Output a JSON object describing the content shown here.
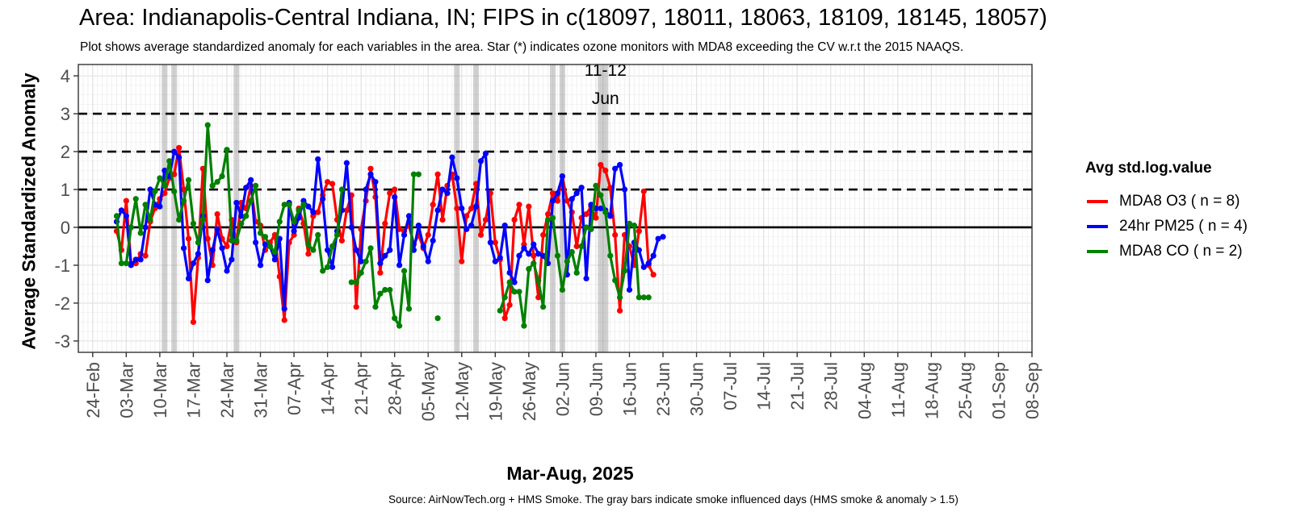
{
  "title": "Area: Indianapolis-Central Indiana, IN; FIPS in c(18097, 18011, 18063, 18109, 18145, 18057)",
  "subtitle": "Plot shows average standardized anomaly for each variables in the area. Star (*) indicates ozone monitors with MDA8 exceeding the CV w.r.t the 2015 NAAQS.",
  "caption": "Source: AirNowTech.org + HMS Smoke. The gray bars indicate smoke influenced days (HMS smoke & anomaly > 1.5)",
  "chart_data": {
    "type": "line",
    "xlabel": "Mar-Aug, 2025",
    "ylabel": "Average Standardized Anomaly",
    "x_axis": "date",
    "xlim": [
      "2025-02-21",
      "2025-09-08"
    ],
    "ylim": [
      -3.3,
      4.3
    ],
    "x_tick_dates": [
      "2025-02-24",
      "2025-03-03",
      "2025-03-10",
      "2025-03-17",
      "2025-03-24",
      "2025-03-31",
      "2025-04-07",
      "2025-04-14",
      "2025-04-21",
      "2025-04-28",
      "2025-05-05",
      "2025-05-12",
      "2025-05-19",
      "2025-05-26",
      "2025-06-02",
      "2025-06-09",
      "2025-06-16",
      "2025-06-23",
      "2025-06-30",
      "2025-07-07",
      "2025-07-14",
      "2025-07-21",
      "2025-07-28",
      "2025-08-04",
      "2025-08-11",
      "2025-08-18",
      "2025-08-25",
      "2025-09-01",
      "2025-09-08"
    ],
    "x_tick_labels": [
      "24-Feb",
      "03-Mar",
      "10-Mar",
      "17-Mar",
      "24-Mar",
      "31-Mar",
      "07-Apr",
      "14-Apr",
      "21-Apr",
      "28-Apr",
      "05-May",
      "12-May",
      "19-May",
      "26-May",
      "02-Jun",
      "09-Jun",
      "16-Jun",
      "23-Jun",
      "30-Jun",
      "07-Jul",
      "14-Jul",
      "21-Jul",
      "28-Jul",
      "04-Aug",
      "11-Aug",
      "18-Aug",
      "25-Aug",
      "01-Sep",
      "08-Sep"
    ],
    "y_ticks": [
      4,
      3,
      2,
      1,
      0,
      -1,
      -2,
      -3
    ],
    "dashed_reference_lines": [
      1,
      2,
      3
    ],
    "solid_reference_line": 0,
    "smoke_day_bars": [
      "2025-03-11",
      "2025-03-13",
      "2025-03-26",
      "2025-05-11",
      "2025-05-15",
      "2025-05-31",
      "2025-06-02",
      "2025-06-10",
      "2025-06-11"
    ],
    "annotation": {
      "text_lines": [
        "11-12",
        "Jun"
      ],
      "x": "2025-06-11",
      "y": 4.0
    },
    "legend": {
      "title": "Avg std.log.value",
      "position": "right"
    },
    "start_date": "2025-03-01",
    "series": [
      {
        "name": "MDA8 O3 ( n = 8)",
        "color": "#ff0000",
        "values": [
          -0.1,
          -0.6,
          0.7,
          -0.95,
          -0.95,
          -0.7,
          -0.75,
          0.15,
          0.5,
          0.75,
          0.9,
          1.3,
          1.4,
          2.1,
          1.0,
          -0.3,
          -2.5,
          -0.8,
          1.55,
          -0.3,
          -1.0,
          0.35,
          -0.3,
          -0.5,
          0.2,
          -0.4,
          0.65,
          0.5,
          1.1,
          0.15,
          0.05,
          -0.6,
          -0.4,
          -0.2,
          -1.3,
          -2.45,
          -0.4,
          -0.2,
          0.5,
          0.1,
          -0.7,
          0.3,
          0.4,
          0.85,
          1.2,
          1.15,
          0.2,
          -0.35,
          0.45,
          0.85,
          -2.1,
          -0.05,
          0.7,
          1.55,
          0.8,
          -1.2,
          0.1,
          0.9,
          1.0,
          -0.05,
          -0.1,
          0.05,
          -0.45,
          -0.2,
          -0.55,
          -0.2,
          0.6,
          1.4,
          0.2,
          1.1,
          1.4,
          0.5,
          -0.9,
          0.3,
          0.5,
          1.15,
          -0.2,
          0.2,
          0.9,
          -0.4,
          -0.85,
          -2.4,
          -2.05,
          0.2,
          0.6,
          -0.45,
          0.55,
          -0.75,
          -1.85,
          -0.2,
          0.35,
          0.9,
          0.7,
          1.35,
          0.7,
          0.4,
          -0.5,
          0.25,
          0.35,
          0.55,
          0.25,
          1.65,
          1.5,
          1.05,
          -0.2,
          -2.2,
          -0.2,
          -0.5,
          -1.0,
          -0.1,
          0.95,
          -1.0,
          -1.25
        ]
      },
      {
        "name": "24hr PM25 ( n = 4)",
        "color": "#0000ff",
        "values": [
          0.15,
          0.45,
          0.3,
          -1.0,
          -0.85,
          -0.85,
          0.0,
          1.0,
          0.6,
          0.55,
          1.5,
          1.35,
          2.0,
          1.85,
          -0.55,
          -1.35,
          -0.95,
          -0.7,
          0.3,
          -1.4,
          -0.6,
          -0.05,
          -0.55,
          -1.15,
          -0.85,
          0.65,
          0.3,
          1.05,
          1.25,
          -0.4,
          -1.0,
          -0.45,
          -0.5,
          -0.85,
          -0.3,
          -2.15,
          0.65,
          -0.1,
          0.25,
          0.7,
          0.55,
          0.4,
          1.8,
          0.75,
          -0.6,
          -1.05,
          -0.1,
          0.45,
          1.7,
          0.0,
          -0.6,
          -0.9,
          1.0,
          1.4,
          1.2,
          -0.95,
          -0.75,
          -0.6,
          0.8,
          -1.0,
          -0.2,
          0.3,
          -0.6,
          0.05,
          -0.5,
          -0.9,
          -0.35,
          0.45,
          1.0,
          0.9,
          1.85,
          1.3,
          0.5,
          -0.05,
          0.05,
          0.55,
          1.75,
          1.95,
          -0.4,
          -0.9,
          -0.8,
          0.05,
          -1.2,
          -1.45,
          -0.75,
          -0.55,
          -0.7,
          -0.45,
          -0.7,
          -0.75,
          -0.95,
          0.7,
          0.9,
          1.35,
          -1.25,
          0.75,
          0.9,
          1.05,
          -1.35,
          0.6,
          0.5,
          0.5,
          0.45,
          0.3,
          1.55,
          1.65,
          1.0,
          -1.65,
          -0.4,
          -0.6,
          -1.05,
          -0.95,
          -0.75,
          -0.3,
          -0.25
        ]
      },
      {
        "name": "MDA8 CO ( n = 2)",
        "color": "#008000",
        "values": [
          0.3,
          -0.95,
          -0.95,
          0.0,
          0.75,
          -0.15,
          0.6,
          0.2,
          0.95,
          1.3,
          1.1,
          1.75,
          0.95,
          0.2,
          0.7,
          1.25,
          0.1,
          -0.4,
          0.2,
          2.7,
          1.1,
          1.2,
          1.35,
          2.05,
          -0.35,
          -0.35,
          0.1,
          0.3,
          0.7,
          1.1,
          -0.15,
          -0.25,
          -0.5,
          -0.65,
          0.15,
          0.6,
          0.6,
          0.15,
          0.45,
          0.6,
          -0.45,
          -0.6,
          -0.2,
          -1.15,
          -1.05,
          -0.5,
          -0.2,
          1.0,
          null,
          -1.45,
          -1.45,
          -1.2,
          -0.9,
          -0.55,
          -2.1,
          -1.75,
          -1.65,
          -1.65,
          -2.4,
          -2.6,
          -1.15,
          -2.15,
          1.4,
          1.4,
          null,
          null,
          null,
          -2.4,
          null,
          null,
          null,
          null,
          null,
          null,
          null,
          null,
          null,
          null,
          null,
          null,
          -2.2,
          -1.85,
          -1.45,
          -1.7,
          -1.7,
          -2.6,
          -1.1,
          -0.95,
          -1.4,
          -2.1,
          0.2,
          0.25,
          -0.75,
          -1.65,
          -0.9,
          -0.65,
          -1.2,
          -0.5,
          0.0,
          -0.05,
          1.1,
          0.85,
          0.4,
          -0.75,
          -1.4,
          -1.85,
          -1.15,
          0.1,
          0.05,
          -1.85,
          -1.85,
          -1.85
        ]
      }
    ]
  }
}
